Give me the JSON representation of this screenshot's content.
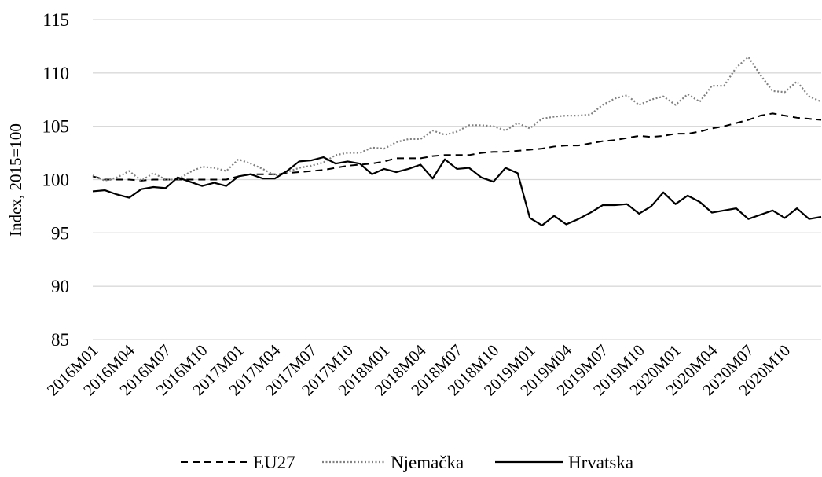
{
  "chart_data": {
    "type": "line",
    "title": "",
    "xlabel": "",
    "ylabel": "Index, 2015=100",
    "ylim": [
      85,
      115
    ],
    "yticks": [
      85,
      90,
      95,
      100,
      105,
      110,
      115
    ],
    "grid": true,
    "legend_position": "bottom",
    "x_tick_labels": [
      "2016M01",
      "2016M04",
      "2016M07",
      "2016M10",
      "2017M01",
      "2017M04",
      "2017M07",
      "2017M10",
      "2018M01",
      "2018M04",
      "2018M07",
      "2018M10",
      "2019M01",
      "2019M04",
      "2019M07",
      "2019M10",
      "2020M01",
      "2020M04",
      "2020M07",
      "2020M10"
    ],
    "x_tick_every": 3,
    "periods": 61,
    "series": [
      {
        "name": "EU27",
        "style": "dashed",
        "color": "#000000",
        "values": [
          100.3,
          100.0,
          100.0,
          100.0,
          99.9,
          100.0,
          100.0,
          100.0,
          100.0,
          100.0,
          100.0,
          100.0,
          100.3,
          100.5,
          100.5,
          100.5,
          100.6,
          100.7,
          100.8,
          100.9,
          101.1,
          101.3,
          101.4,
          101.5,
          101.7,
          102.0,
          102.0,
          102.0,
          102.2,
          102.3,
          102.3,
          102.3,
          102.5,
          102.6,
          102.6,
          102.7,
          102.8,
          102.9,
          103.1,
          103.2,
          103.2,
          103.4,
          103.6,
          103.7,
          103.9,
          104.1,
          104.0,
          104.1,
          104.3,
          104.3,
          104.5,
          104.8,
          105.0,
          105.3,
          105.6,
          106.0,
          106.2,
          106.0,
          105.8,
          105.7,
          105.6
        ]
      },
      {
        "name": "Njemačka",
        "style": "dotted",
        "color": "#808080",
        "values": [
          100.4,
          99.9,
          100.2,
          100.8,
          99.9,
          100.6,
          100.0,
          100.0,
          100.7,
          101.2,
          101.1,
          100.8,
          101.9,
          101.5,
          101.0,
          100.4,
          100.7,
          101.1,
          101.3,
          101.6,
          102.3,
          102.5,
          102.5,
          103.0,
          102.9,
          103.5,
          103.8,
          103.8,
          104.6,
          104.2,
          104.5,
          105.1,
          105.1,
          105.0,
          104.6,
          105.3,
          104.8,
          105.7,
          105.9,
          106.0,
          106.0,
          106.1,
          107.0,
          107.6,
          107.9,
          107.0,
          107.5,
          107.8,
          107.0,
          108.0,
          107.3,
          108.8,
          108.8,
          110.5,
          111.5,
          109.8,
          108.3,
          108.2,
          109.2,
          107.8,
          107.3
        ]
      },
      {
        "name": "Hrvatska",
        "style": "solid",
        "color": "#000000",
        "values": [
          98.9,
          99.0,
          98.6,
          98.3,
          99.1,
          99.3,
          99.2,
          100.2,
          99.8,
          99.4,
          99.7,
          99.4,
          100.3,
          100.5,
          100.1,
          100.1,
          100.8,
          101.7,
          101.8,
          102.1,
          101.5,
          101.7,
          101.5,
          100.5,
          101.0,
          100.7,
          101.0,
          101.4,
          100.1,
          101.9,
          101.0,
          101.1,
          100.2,
          99.8,
          101.1,
          100.6,
          96.4,
          95.7,
          96.6,
          95.8,
          96.3,
          96.9,
          97.6,
          97.6,
          97.7,
          96.8,
          97.5,
          98.8,
          97.7,
          98.5,
          97.9,
          96.9,
          97.1,
          97.3,
          96.3,
          96.7,
          97.1,
          96.4,
          97.3,
          96.3,
          96.5
        ]
      }
    ]
  }
}
